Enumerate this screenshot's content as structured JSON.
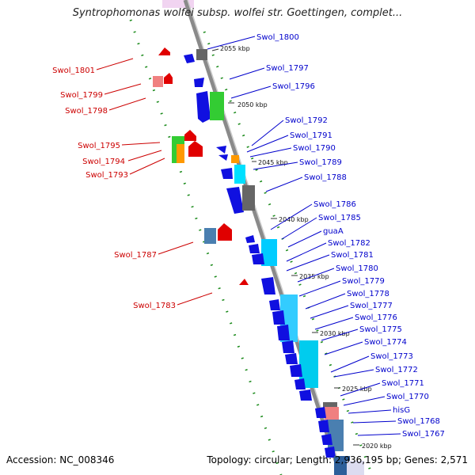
{
  "title": "Syntrophomonas wolfei subsp. wolfei str. Goettingen, complet...",
  "footer": {
    "accession": "Accession: NC_008346",
    "topology": "Topology: circular; Length: 2,936,195 bp; Genes: 2,571"
  },
  "colors": {
    "forward_label": "#0000cc",
    "reverse_label": "#cc0000",
    "backbone": "#888888",
    "ticks": "#228b22"
  },
  "kbp_ticks": [
    "2055 kbp",
    "2050 kbp",
    "2045 kbp",
    "2040 kbp",
    "2035 kbp",
    "2030 kbp",
    "2025 kbp",
    "2020 kbp"
  ],
  "forward_genes": [
    "Swol_1800",
    "Swol_1797",
    "Swol_1796",
    "Swol_1792",
    "Swol_1791",
    "Swol_1790",
    "Swol_1789",
    "Swol_1788",
    "Swol_1786",
    "Swol_1785",
    "guaA",
    "Swol_1782",
    "Swol_1781",
    "Swol_1780",
    "Swol_1779",
    "Swol_1778",
    "Swol_1777",
    "Swol_1776",
    "Swol_1775",
    "Swol_1774",
    "Swol_1773",
    "Swol_1772",
    "Swol_1771",
    "Swol_1770",
    "hisG",
    "Swol_1768",
    "Swol_1767"
  ],
  "reverse_genes": [
    "Swol_1801",
    "Swol_1799",
    "Swol_1798",
    "Swol_1795",
    "Swol_1794",
    "Swol_1793",
    "Swol_1787",
    "Swol_1783"
  ]
}
